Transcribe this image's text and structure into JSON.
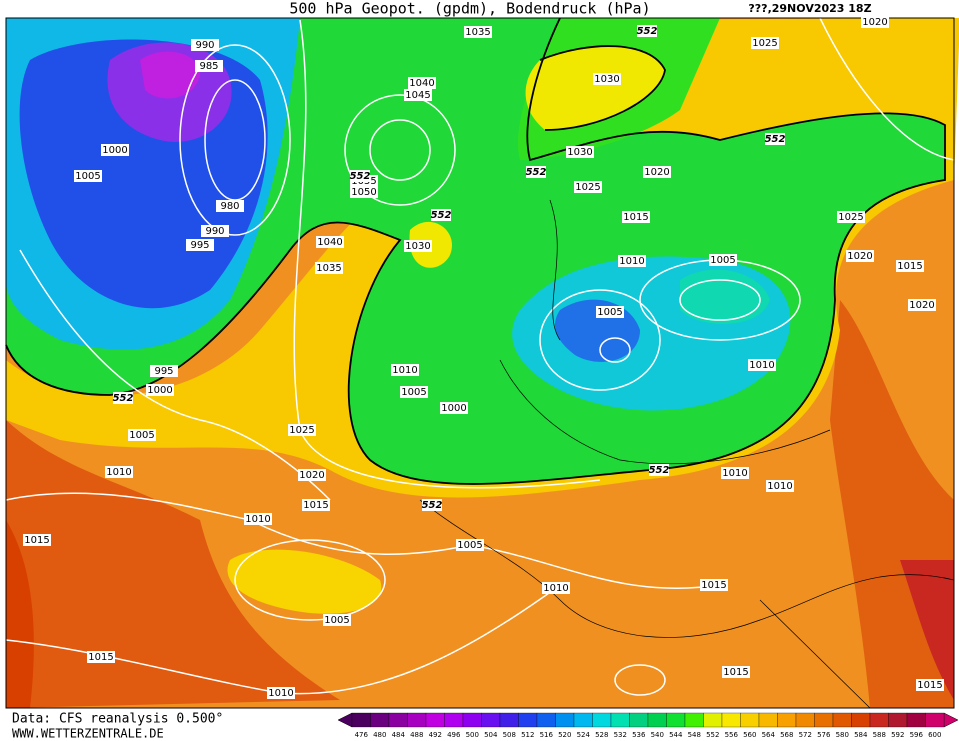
{
  "header": {
    "title": "500 hPa Geopot. (gpdm), Bodendruck (hPa)",
    "date": "???,29NOV2023 18Z"
  },
  "footer": {
    "source": "Data: CFS reanalysis 0.500°",
    "site": "WWW.WETTERZENTRALE.DE"
  },
  "isobars": {
    "labels": [
      "1035",
      "990",
      "985",
      "1040",
      "1045",
      "1030",
      "1025",
      "1020",
      "1000",
      "1005",
      "1030",
      "1020",
      "1025",
      "1055",
      "1050",
      "980",
      "990",
      "995",
      "1015",
      "1025",
      "1040",
      "1030",
      "1035",
      "1010",
      "1005",
      "1020",
      "1015",
      "1020",
      "1005",
      "1010",
      "995",
      "1000",
      "1010",
      "1005",
      "1000",
      "1005",
      "1025",
      "1010",
      "1020",
      "1015",
      "1010",
      "1010",
      "1010",
      "1015",
      "1005",
      "1010",
      "1015",
      "1005",
      "1015",
      "1015",
      "1010",
      "1015"
    ]
  },
  "height_labels": {
    "labels": [
      "552",
      "552",
      "552",
      "552",
      "552",
      "552",
      "552",
      "552"
    ]
  },
  "colorbar": {
    "labels": [
      "476",
      "480",
      "484",
      "488",
      "492",
      "496",
      "500",
      "504",
      "508",
      "512",
      "516",
      "520",
      "524",
      "528",
      "532",
      "536",
      "540",
      "544",
      "548",
      "552",
      "556",
      "560",
      "564",
      "568",
      "572",
      "576",
      "580",
      "584",
      "588",
      "592",
      "596",
      "600"
    ],
    "colors": [
      "#4b0060",
      "#6a0080",
      "#8a00a0",
      "#a800c0",
      "#c000e0",
      "#b000f0",
      "#9000f0",
      "#6a10f0",
      "#4020e8",
      "#2040f0",
      "#1060f0",
      "#0090f0",
      "#00b8f0",
      "#00d8e0",
      "#00e0b0",
      "#00d080",
      "#00d050",
      "#10e030",
      "#40f000",
      "#e0f000",
      "#f8e800",
      "#f8d000",
      "#f8b800",
      "#f8a000",
      "#f08800",
      "#e87000",
      "#e05800",
      "#d84000",
      "#c82820",
      "#b01830",
      "#a00040",
      "#d0006a"
    ]
  }
}
